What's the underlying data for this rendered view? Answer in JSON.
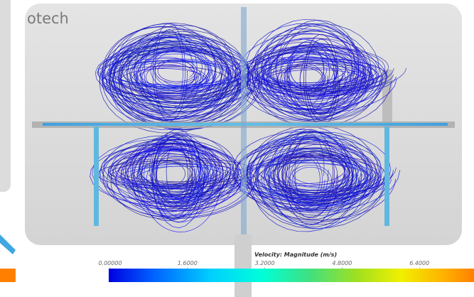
{
  "brand": "otech",
  "colorbar": {
    "title": "Velocity: Magnitude (m/s)",
    "ticks": [
      {
        "value": 0,
        "label": "0.00000"
      },
      {
        "value": 1.6,
        "label": "1.6000"
      },
      {
        "value": 3.2,
        "label": "3.2000"
      },
      {
        "value": 4.8,
        "label": "4.8000"
      },
      {
        "value": 6.4,
        "label": "6.4000"
      }
    ]
  }
}
